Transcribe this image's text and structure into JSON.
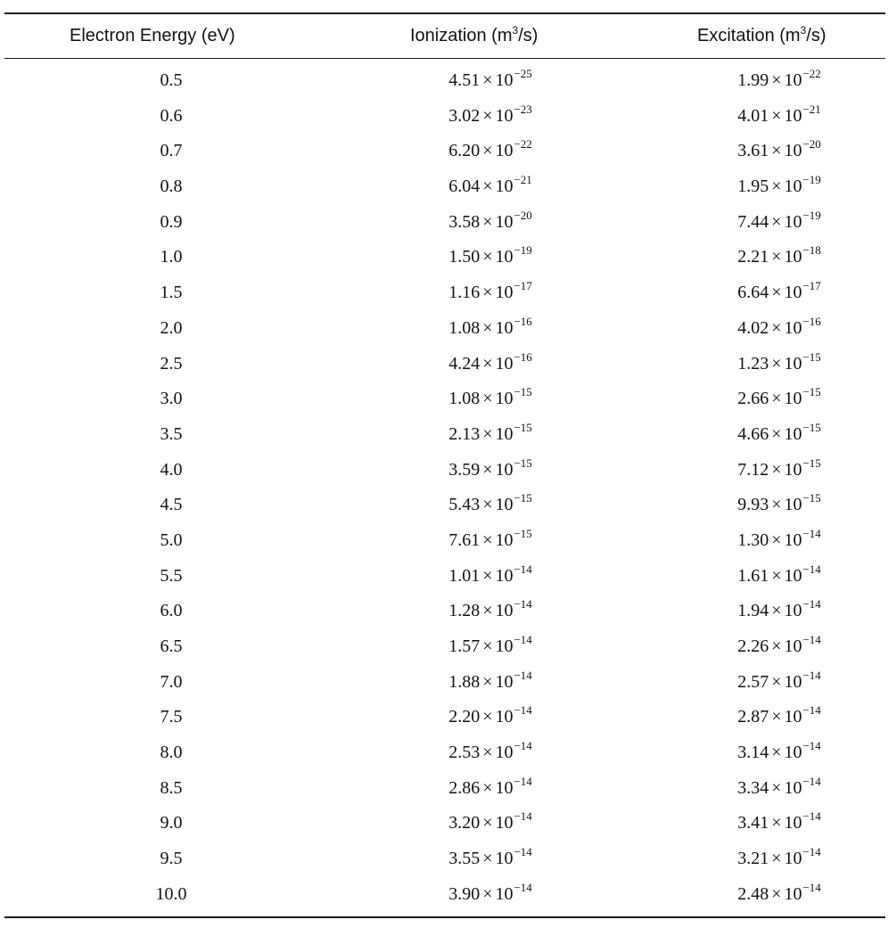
{
  "table": {
    "headers": {
      "energy": "Electron Energy (eV)",
      "ionization_prefix": "Ionization (m",
      "ionization_sup": "3",
      "ionization_suffix": "/s)",
      "excitation_prefix": "Excitation (m",
      "excitation_sup": "3",
      "excitation_suffix": "/s)"
    },
    "times_symbol": "×",
    "base": "10",
    "rows": [
      {
        "energy": "0.5",
        "ion_mant": "4.51",
        "ion_exp": "−25",
        "exc_mant": "1.99",
        "exc_exp": "−22"
      },
      {
        "energy": "0.6",
        "ion_mant": "3.02",
        "ion_exp": "−23",
        "exc_mant": "4.01",
        "exc_exp": "−21"
      },
      {
        "energy": "0.7",
        "ion_mant": "6.20",
        "ion_exp": "−22",
        "exc_mant": "3.61",
        "exc_exp": "−20"
      },
      {
        "energy": "0.8",
        "ion_mant": "6.04",
        "ion_exp": "−21",
        "exc_mant": "1.95",
        "exc_exp": "−19"
      },
      {
        "energy": "0.9",
        "ion_mant": "3.58",
        "ion_exp": "−20",
        "exc_mant": "7.44",
        "exc_exp": "−19"
      },
      {
        "energy": "1.0",
        "ion_mant": "1.50",
        "ion_exp": "−19",
        "exc_mant": "2.21",
        "exc_exp": "−18"
      },
      {
        "energy": "1.5",
        "ion_mant": "1.16",
        "ion_exp": "−17",
        "exc_mant": "6.64",
        "exc_exp": "−17"
      },
      {
        "energy": "2.0",
        "ion_mant": "1.08",
        "ion_exp": "−16",
        "exc_mant": "4.02",
        "exc_exp": "−16"
      },
      {
        "energy": "2.5",
        "ion_mant": "4.24",
        "ion_exp": "−16",
        "exc_mant": "1.23",
        "exc_exp": "−15"
      },
      {
        "energy": "3.0",
        "ion_mant": "1.08",
        "ion_exp": "−15",
        "exc_mant": "2.66",
        "exc_exp": "−15"
      },
      {
        "energy": "3.5",
        "ion_mant": "2.13",
        "ion_exp": "−15",
        "exc_mant": "4.66",
        "exc_exp": "−15"
      },
      {
        "energy": "4.0",
        "ion_mant": "3.59",
        "ion_exp": "−15",
        "exc_mant": "7.12",
        "exc_exp": "−15"
      },
      {
        "energy": "4.5",
        "ion_mant": "5.43",
        "ion_exp": "−15",
        "exc_mant": "9.93",
        "exc_exp": "−15"
      },
      {
        "energy": "5.0",
        "ion_mant": "7.61",
        "ion_exp": "−15",
        "exc_mant": "1.30",
        "exc_exp": "−14"
      },
      {
        "energy": "5.5",
        "ion_mant": "1.01",
        "ion_exp": "−14",
        "exc_mant": "1.61",
        "exc_exp": "−14"
      },
      {
        "energy": "6.0",
        "ion_mant": "1.28",
        "ion_exp": "−14",
        "exc_mant": "1.94",
        "exc_exp": "−14"
      },
      {
        "energy": "6.5",
        "ion_mant": "1.57",
        "ion_exp": "−14",
        "exc_mant": "2.26",
        "exc_exp": "−14"
      },
      {
        "energy": "7.0",
        "ion_mant": "1.88",
        "ion_exp": "−14",
        "exc_mant": "2.57",
        "exc_exp": "−14"
      },
      {
        "energy": "7.5",
        "ion_mant": "2.20",
        "ion_exp": "−14",
        "exc_mant": "2.87",
        "exc_exp": "−14"
      },
      {
        "energy": "8.0",
        "ion_mant": "2.53",
        "ion_exp": "−14",
        "exc_mant": "3.14",
        "exc_exp": "−14"
      },
      {
        "energy": "8.5",
        "ion_mant": "2.86",
        "ion_exp": "−14",
        "exc_mant": "3.34",
        "exc_exp": "−14"
      },
      {
        "energy": "9.0",
        "ion_mant": "3.20",
        "ion_exp": "−14",
        "exc_mant": "3.41",
        "exc_exp": "−14"
      },
      {
        "energy": "9.5",
        "ion_mant": "3.55",
        "ion_exp": "−14",
        "exc_mant": "3.21",
        "exc_exp": "−14"
      },
      {
        "energy": "10.0",
        "ion_mant": "3.90",
        "ion_exp": "−14",
        "exc_mant": "2.48",
        "exc_exp": "−14"
      }
    ]
  }
}
